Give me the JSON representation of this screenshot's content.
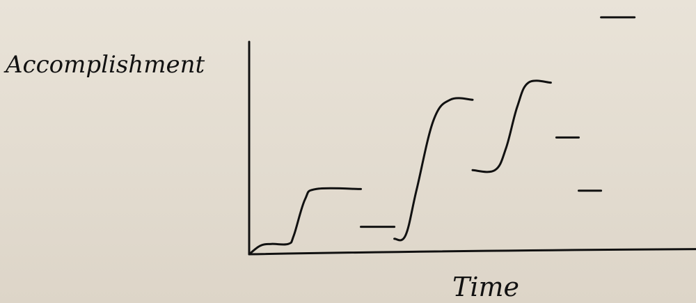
{
  "chart_data": {
    "type": "line",
    "title": "",
    "xlabel": "Time",
    "ylabel": "Accomplishment",
    "grid": false,
    "legend": "none",
    "axis_ticks": false,
    "ink_color": "#111111",
    "paper_color": "#e4ddd1",
    "note": "",
    "series": [
      {
        "name": "",
        "points": [
          [
            0,
            0
          ],
          [
            1,
            5
          ],
          [
            2,
            6
          ],
          [
            3.5,
            6
          ],
          [
            4,
            11
          ],
          [
            5,
            32
          ],
          [
            6,
            38
          ],
          [
            10,
            38
          ]
        ]
      },
      {
        "name": "",
        "points": [
          [
            10,
            16
          ],
          [
            13,
            16
          ]
        ]
      },
      {
        "name": "",
        "points": [
          [
            13,
            9
          ],
          [
            14,
            11
          ],
          [
            15,
            38
          ],
          [
            16.5,
            78
          ],
          [
            18,
            90
          ],
          [
            20,
            90
          ]
        ]
      },
      {
        "name": "",
        "points": [
          [
            20,
            49
          ],
          [
            22,
            49
          ],
          [
            23,
            62
          ],
          [
            24,
            86
          ],
          [
            25,
            100
          ],
          [
            27,
            100
          ]
        ]
      },
      {
        "name": "",
        "points": [
          [
            27.5,
            68
          ],
          [
            29.5,
            68
          ]
        ]
      },
      {
        "name": "",
        "points": [
          [
            29.5,
            37
          ],
          [
            31.5,
            37
          ]
        ]
      },
      {
        "name": "",
        "points": [
          [
            31.5,
            138
          ],
          [
            34.5,
            138
          ]
        ]
      }
    ],
    "baseline": {
      "x": [
        0,
        40
      ],
      "y": [
        0,
        3
      ]
    }
  }
}
